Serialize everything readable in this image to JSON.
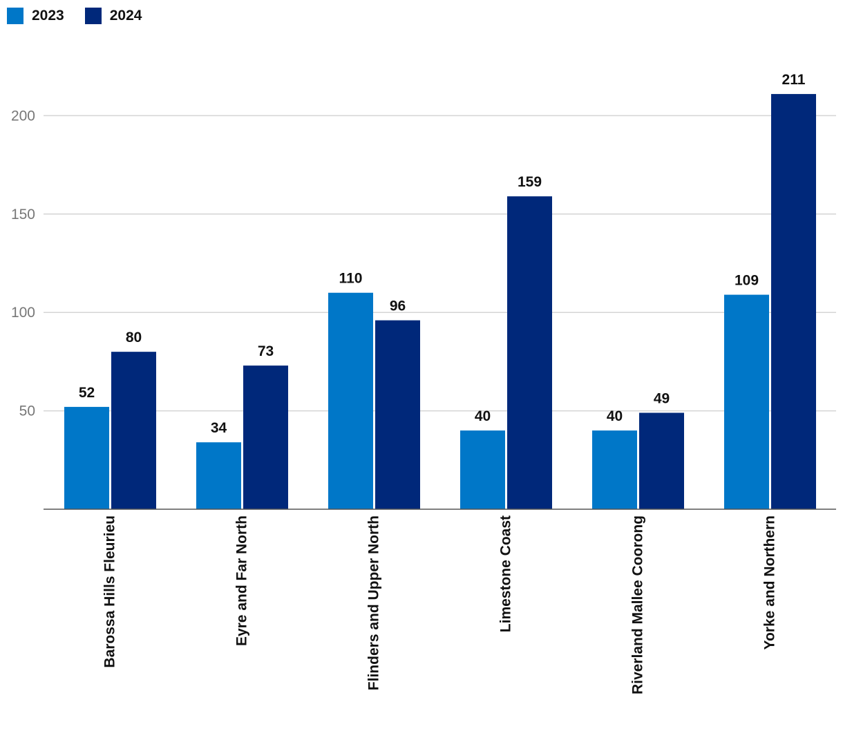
{
  "chart_data": {
    "type": "bar",
    "categories": [
      "Barossa Hills Fleurieu",
      "Eyre and Far North",
      "Flinders and Upper North",
      "Limestone Coast",
      "Riverland Mallee Coorong",
      "Yorke and Northern"
    ],
    "series": [
      {
        "name": "2023",
        "color": "#0077c8",
        "values": [
          52,
          34,
          110,
          40,
          40,
          109
        ]
      },
      {
        "name": "2024",
        "color": "#00287a",
        "values": [
          80,
          73,
          96,
          159,
          49,
          211
        ]
      }
    ],
    "yticks": [
      50,
      100,
      150,
      200
    ],
    "ylim": [
      0,
      225
    ],
    "grid": true,
    "legend_position": "top-left",
    "title": "",
    "xlabel": "",
    "ylabel": ""
  }
}
